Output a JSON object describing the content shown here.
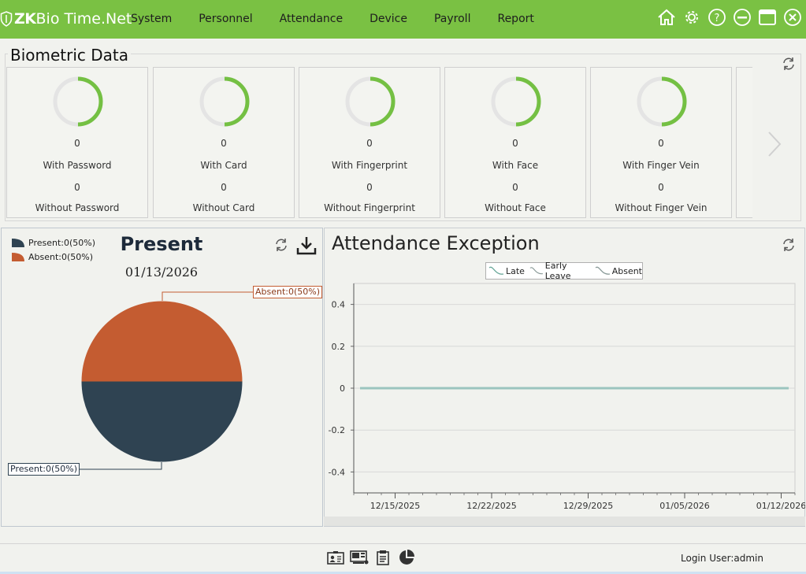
{
  "app": {
    "logo_zk": "ZK",
    "logo_rest": "Bio Time.Net"
  },
  "menu": [
    "System",
    "Personnel",
    "Attendance",
    "Device",
    "Payroll",
    "Report"
  ],
  "window_icons": [
    "home-icon",
    "gear-icon",
    "help-icon",
    "minimize-icon",
    "maximize-icon",
    "close-icon"
  ],
  "biometric": {
    "title": "Biometric Data",
    "cards": [
      {
        "with_count": "0",
        "with_label": "With Password",
        "without_count": "0",
        "without_label": "Without Password",
        "ring_fraction": 0.5
      },
      {
        "with_count": "0",
        "with_label": "With Card",
        "without_count": "0",
        "without_label": "Without Card",
        "ring_fraction": 0.5
      },
      {
        "with_count": "0",
        "with_label": "With Fingerprint",
        "without_count": "0",
        "without_label": "Without Fingerprint",
        "ring_fraction": 0.5
      },
      {
        "with_count": "0",
        "with_label": "With Face",
        "without_count": "0",
        "without_label": "Without Face",
        "ring_fraction": 0.5
      },
      {
        "with_count": "0",
        "with_label": "With Finger Vein",
        "without_count": "0",
        "without_label": "Without Finger Vein",
        "ring_fraction": 0.5
      }
    ]
  },
  "present": {
    "title": "Present",
    "date": "01/13/2026",
    "legend_present": "Present:0(50%)",
    "legend_absent": "Absent:0(50%)",
    "label_absent": "Absent:0(50%)",
    "label_present": "Present:0(50%)"
  },
  "attendance": {
    "title": "Attendance Exception",
    "legend": [
      "Late",
      "Early Leave",
      "Absent"
    ]
  },
  "colors": {
    "topbar": "#7ac143",
    "ring_green": "#74c043",
    "ring_grey": "#e4e4e4",
    "present": "#2f4352",
    "absent": "#c45c31",
    "line": "#9bc5bf"
  },
  "chart_data": [
    {
      "type": "pie",
      "title": "Present",
      "subtitle": "01/13/2026",
      "categories": [
        "Present",
        "Absent"
      ],
      "values": [
        50,
        50
      ],
      "labels": [
        "Present:0(50%)",
        "Absent:0(50%)"
      ],
      "legend": "top-left"
    },
    {
      "type": "line",
      "title": "Attendance Exception",
      "x_ticks": [
        "12/15/2025",
        "12/22/2025",
        "12/29/2025",
        "01/05/2026",
        "01/12/2026"
      ],
      "y_ticks": [
        "0.4",
        "0.2",
        "0",
        "-0.2",
        "-0.4"
      ],
      "ylim": [
        -0.5,
        0.5
      ],
      "xlim": [
        "12/12/2025",
        "01/13/2026"
      ],
      "series": [
        {
          "name": "Late",
          "values": [
            0,
            0
          ]
        },
        {
          "name": "Early Leave",
          "values": [
            0,
            0
          ]
        },
        {
          "name": "Absent",
          "values": [
            0,
            0
          ]
        }
      ],
      "grid": true,
      "legend": "top-center"
    }
  ],
  "footer": {
    "login_user": "Login User:admin"
  }
}
